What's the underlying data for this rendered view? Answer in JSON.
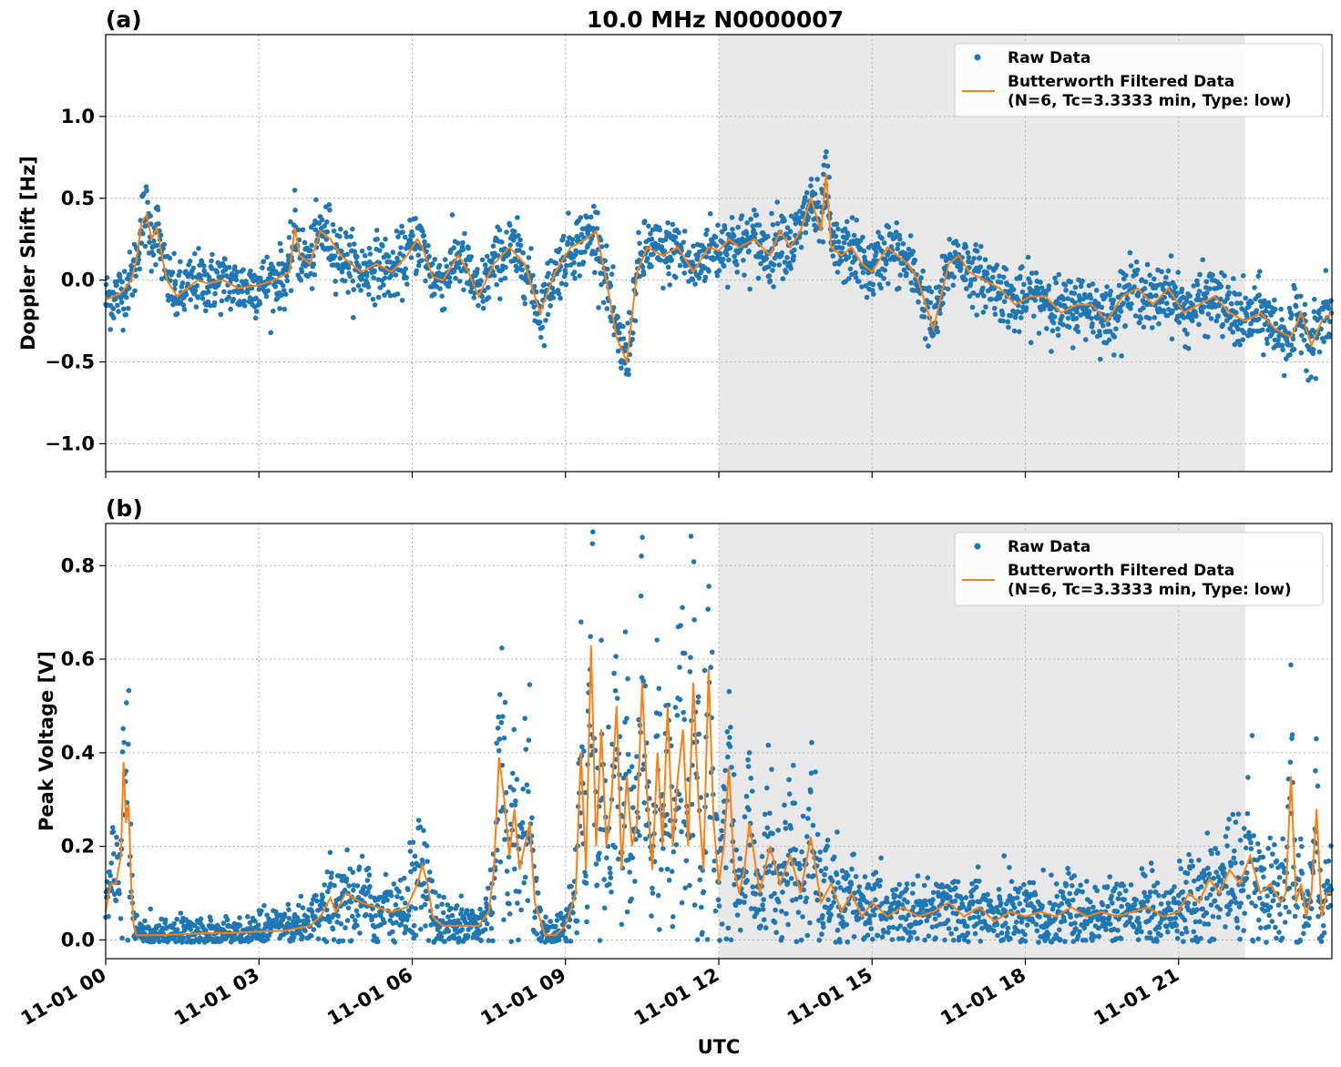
{
  "figure": {
    "title": "10.0 MHz N0000007",
    "xlabel": "UTC",
    "colors": {
      "raw": "#1f77b4",
      "filtered": "#ff7f0e",
      "shade": "#e8e8e8"
    }
  },
  "chart_data": [
    {
      "type": "scatter",
      "panel_label": "(a)",
      "ylabel": "Doppler Shift [Hz]",
      "xlim": [
        0,
        24
      ],
      "ylim": [
        -1.17,
        1.5
      ],
      "yticks": [
        1.0,
        0.5,
        0.0,
        -0.5,
        -1.0
      ],
      "ytick_labels": [
        "1.0",
        "0.5",
        "0.0",
        "−0.5",
        "−1.0"
      ],
      "shaded_region_hours": [
        12,
        22.3
      ],
      "grid": true,
      "legend_placement": "upper right",
      "legend": [
        {
          "name": "Raw Data"
        },
        {
          "name": "Butterworth Filtered Data\n(N=6, Tc=3.3333 min, Type: low)"
        }
      ],
      "series": [
        {
          "name": "Butterworth Filtered Data\n(N=6, Tc=3.3333 min, Type: low)",
          "kind": "line",
          "x": [
            0,
            0.3,
            0.5,
            0.6,
            0.7,
            0.8,
            0.9,
            1.0,
            1.1,
            1.2,
            1.4,
            1.6,
            1.8,
            2.0,
            2.3,
            2.6,
            3.0,
            3.3,
            3.6,
            3.7,
            3.8,
            4.0,
            4.2,
            4.4,
            4.6,
            4.8,
            5.0,
            5.3,
            5.6,
            5.9,
            6.1,
            6.2,
            6.4,
            6.6,
            6.9,
            7.1,
            7.3,
            7.6,
            7.9,
            8.2,
            8.5,
            8.8,
            9.1,
            9.4,
            9.6,
            9.8,
            10.0,
            10.2,
            10.4,
            10.6,
            10.9,
            11.2,
            11.5,
            11.8,
            12.0,
            12.2,
            12.4,
            12.7,
            13.0,
            13.2,
            13.4,
            13.6,
            13.8,
            14.0,
            14.1,
            14.2,
            14.4,
            14.6,
            14.8,
            15.0,
            15.3,
            15.5,
            15.7,
            15.9,
            16.2,
            16.5,
            16.7,
            16.9,
            17.2,
            17.5,
            17.8,
            18.1,
            18.4,
            18.7,
            19.0,
            19.3,
            19.6,
            19.9,
            20.2,
            20.5,
            20.8,
            21.1,
            21.4,
            21.7,
            22.0,
            22.3,
            22.6,
            22.9,
            23.2,
            23.4,
            23.6,
            23.8,
            24.0
          ],
          "y": [
            -0.12,
            -0.08,
            0.0,
            0.12,
            0.35,
            0.4,
            0.25,
            0.32,
            0.15,
            0.0,
            -0.1,
            -0.05,
            0.0,
            -0.02,
            0.0,
            -0.05,
            -0.03,
            0.0,
            0.05,
            0.32,
            0.15,
            0.1,
            0.3,
            0.25,
            0.15,
            0.1,
            0.05,
            0.1,
            0.05,
            0.15,
            0.25,
            0.2,
            0.02,
            0.0,
            0.15,
            0.05,
            -0.1,
            0.1,
            0.2,
            0.1,
            -0.2,
            0.05,
            0.2,
            0.25,
            0.3,
            0.0,
            -0.35,
            -0.5,
            0.05,
            0.2,
            0.15,
            0.2,
            0.05,
            0.2,
            0.18,
            0.25,
            0.2,
            0.25,
            0.15,
            0.3,
            0.2,
            0.3,
            0.5,
            0.3,
            0.65,
            0.2,
            0.15,
            0.2,
            0.1,
            0.05,
            0.2,
            0.15,
            0.1,
            0.0,
            -0.3,
            0.1,
            0.15,
            0.05,
            0.0,
            -0.05,
            -0.15,
            -0.1,
            -0.1,
            -0.2,
            -0.15,
            -0.15,
            -0.25,
            -0.1,
            -0.05,
            -0.15,
            -0.05,
            -0.2,
            -0.15,
            -0.1,
            -0.2,
            -0.25,
            -0.2,
            -0.3,
            -0.35,
            -0.2,
            -0.4,
            -0.25,
            -0.2
          ]
        }
      ]
    },
    {
      "type": "scatter",
      "panel_label": "(b)",
      "ylabel": "Peak Voltage [V]",
      "xlim": [
        0,
        24
      ],
      "ylim": [
        -0.04,
        0.89
      ],
      "yticks": [
        0.0,
        0.2,
        0.4,
        0.6,
        0.8
      ],
      "ytick_labels": [
        "0.0",
        "0.2",
        "0.4",
        "0.6",
        "0.8"
      ],
      "xticks": [
        0,
        3,
        6,
        9,
        12,
        15,
        18,
        21
      ],
      "xtick_labels": [
        "11-01 00",
        "11-01 03",
        "11-01 06",
        "11-01 09",
        "11-01 12",
        "11-01 15",
        "11-01 18",
        "11-01 21"
      ],
      "shaded_region_hours": [
        12,
        22.3
      ],
      "grid": true,
      "legend_placement": "upper right",
      "legend": [
        {
          "name": "Raw Data"
        },
        {
          "name": "Butterworth Filtered Data\n(N=6, Tc=3.3333 min, Type: low)"
        }
      ],
      "series": [
        {
          "name": "Butterworth Filtered Data\n(N=6, Tc=3.3333 min, Type: low)",
          "kind": "line",
          "x": [
            0,
            0.1,
            0.2,
            0.3,
            0.35,
            0.4,
            0.45,
            0.5,
            0.55,
            0.6,
            0.7,
            0.8,
            1.0,
            1.5,
            2.0,
            2.5,
            3.0,
            3.5,
            4.0,
            4.2,
            4.4,
            4.5,
            4.7,
            5.0,
            5.3,
            5.6,
            5.9,
            6.1,
            6.2,
            6.3,
            6.4,
            6.6,
            7.0,
            7.3,
            7.5,
            7.6,
            7.7,
            7.8,
            7.9,
            8.0,
            8.1,
            8.2,
            8.3,
            8.4,
            8.6,
            8.8,
            9.0,
            9.2,
            9.3,
            9.4,
            9.5,
            9.6,
            9.7,
            9.8,
            9.9,
            10.0,
            10.1,
            10.2,
            10.3,
            10.4,
            10.5,
            10.6,
            10.7,
            10.8,
            10.9,
            11.0,
            11.1,
            11.2,
            11.3,
            11.4,
            11.5,
            11.6,
            11.7,
            11.8,
            11.9,
            12.0,
            12.1,
            12.2,
            12.3,
            12.4,
            12.5,
            12.6,
            12.8,
            13.0,
            13.2,
            13.4,
            13.6,
            13.8,
            14.0,
            14.2,
            14.4,
            14.6,
            14.8,
            15.0,
            15.3,
            15.6,
            15.9,
            16.2,
            16.5,
            16.8,
            17.1,
            17.4,
            17.7,
            18.0,
            18.3,
            18.6,
            18.9,
            19.2,
            19.5,
            19.8,
            20.1,
            20.4,
            20.7,
            21.0,
            21.2,
            21.4,
            21.6,
            21.8,
            22.0,
            22.2,
            22.4,
            22.6,
            22.8,
            23.0,
            23.1,
            23.2,
            23.3,
            23.4,
            23.5,
            23.6,
            23.7,
            23.8,
            23.9,
            24.0
          ],
          "y": [
            0.06,
            0.12,
            0.12,
            0.18,
            0.38,
            0.25,
            0.29,
            0.12,
            0.03,
            0.01,
            0.01,
            0.01,
            0.01,
            0.012,
            0.015,
            0.015,
            0.018,
            0.02,
            0.03,
            0.05,
            0.09,
            0.06,
            0.1,
            0.08,
            0.07,
            0.06,
            0.07,
            0.12,
            0.16,
            0.12,
            0.05,
            0.03,
            0.03,
            0.03,
            0.06,
            0.15,
            0.39,
            0.3,
            0.18,
            0.28,
            0.15,
            0.2,
            0.25,
            0.08,
            0.01,
            0.01,
            0.03,
            0.1,
            0.4,
            0.15,
            0.63,
            0.2,
            0.45,
            0.2,
            0.3,
            0.5,
            0.15,
            0.35,
            0.2,
            0.25,
            0.55,
            0.3,
            0.15,
            0.4,
            0.2,
            0.5,
            0.2,
            0.35,
            0.45,
            0.2,
            0.55,
            0.3,
            0.15,
            0.58,
            0.25,
            0.12,
            0.2,
            0.37,
            0.15,
            0.1,
            0.15,
            0.25,
            0.1,
            0.2,
            0.12,
            0.18,
            0.1,
            0.22,
            0.08,
            0.12,
            0.06,
            0.1,
            0.05,
            0.08,
            0.05,
            0.07,
            0.05,
            0.06,
            0.08,
            0.05,
            0.07,
            0.04,
            0.06,
            0.05,
            0.06,
            0.05,
            0.07,
            0.05,
            0.06,
            0.05,
            0.06,
            0.07,
            0.05,
            0.06,
            0.1,
            0.08,
            0.13,
            0.1,
            0.15,
            0.12,
            0.18,
            0.1,
            0.12,
            0.08,
            0.1,
            0.35,
            0.08,
            0.12,
            0.05,
            0.1,
            0.28,
            0.05,
            0.1,
            0.1
          ]
        }
      ]
    }
  ]
}
